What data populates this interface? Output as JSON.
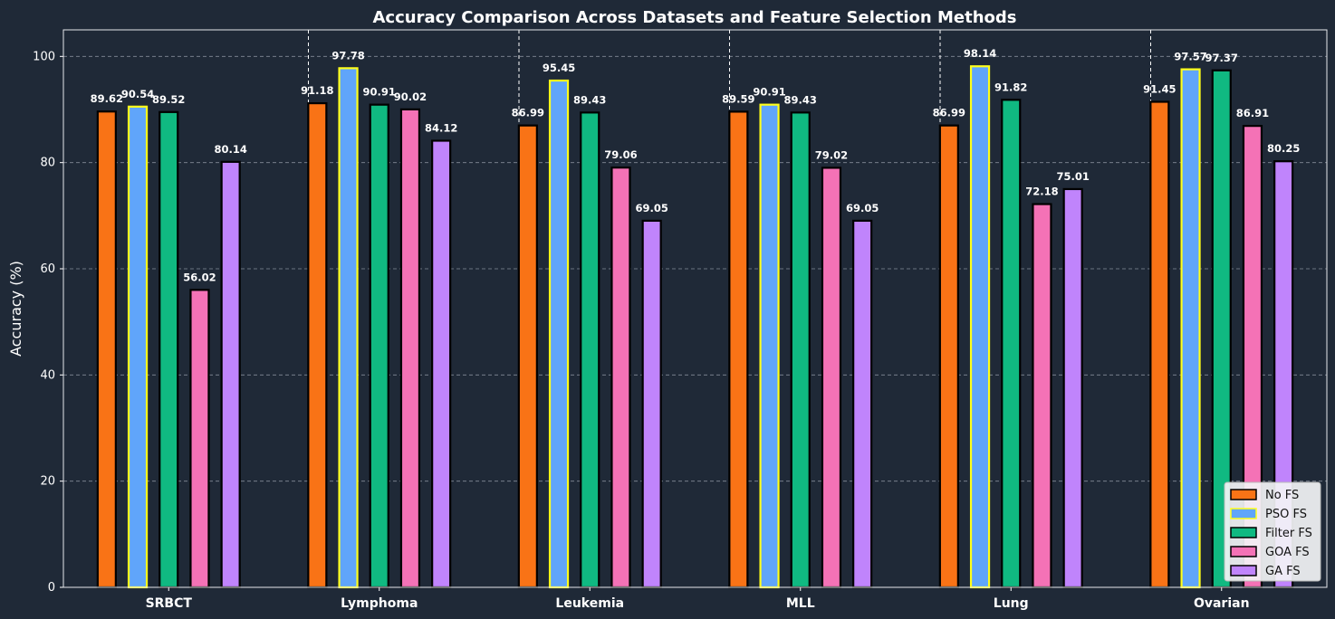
{
  "chart_data": {
    "type": "bar",
    "title": "Accuracy Comparison Across Datasets and Feature Selection Methods",
    "xlabel": "",
    "ylabel": "Accuracy (%)",
    "ylim": [
      0,
      105
    ],
    "yticks": [
      0,
      20,
      40,
      60,
      80,
      100
    ],
    "grid": true,
    "legend_position": "bottom-right",
    "categories": [
      "SRBCT",
      "Lymphoma",
      "Leukemia",
      "MLL",
      "Lung",
      "Ovarian"
    ],
    "series": [
      {
        "name": "No FS",
        "color": "#f97316",
        "edge": "#000000",
        "values": [
          89.62,
          91.18,
          86.99,
          89.59,
          86.99,
          91.45
        ]
      },
      {
        "name": "PSO FS",
        "color": "#60a5fa",
        "edge": "#ffff1a",
        "values": [
          90.54,
          97.78,
          95.45,
          90.91,
          98.14,
          97.57
        ]
      },
      {
        "name": "Filter FS",
        "color": "#10b981",
        "edge": "#000000",
        "values": [
          89.52,
          90.91,
          89.43,
          89.43,
          91.82,
          97.37
        ]
      },
      {
        "name": "GOA FS",
        "color": "#f472b6",
        "edge": "#000000",
        "values": [
          56.02,
          90.02,
          79.06,
          79.02,
          72.18,
          86.91
        ]
      },
      {
        "name": "GA FS",
        "color": "#c084fc",
        "edge": "#000000",
        "values": [
          80.14,
          84.12,
          69.05,
          69.05,
          75.01,
          80.25
        ]
      }
    ]
  }
}
